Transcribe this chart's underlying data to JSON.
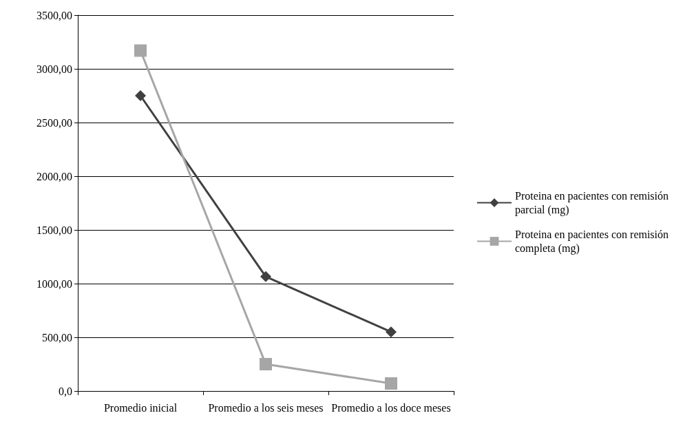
{
  "chart_data": {
    "type": "line",
    "categories": [
      "Promedio inicial",
      "Promedio a los seis meses",
      "Promedio a los doce meses"
    ],
    "series": [
      {
        "name": "Proteina en pacientes con remisión parcial (mg)",
        "color": "#404040",
        "marker": "diamond",
        "values": [
          2750,
          1065,
          550
        ]
      },
      {
        "name": "Proteina en pacientes con remisión completa (mg)",
        "color": "#a6a6a6",
        "marker": "square",
        "values": [
          3170,
          250,
          70
        ]
      }
    ],
    "ylim": [
      0,
      3500
    ],
    "yticks": [
      {
        "value": 0,
        "label": "0,0"
      },
      {
        "value": 500,
        "label": "500,00"
      },
      {
        "value": 1000,
        "label": "1000,00"
      },
      {
        "value": 1500,
        "label": "1500,00"
      },
      {
        "value": 2000,
        "label": "2000,00"
      },
      {
        "value": 2500,
        "label": "2500,00"
      },
      {
        "value": 3000,
        "label": "3000,00"
      },
      {
        "value": 3500,
        "label": "3500,00"
      }
    ],
    "grid": "y",
    "legend": "right"
  }
}
